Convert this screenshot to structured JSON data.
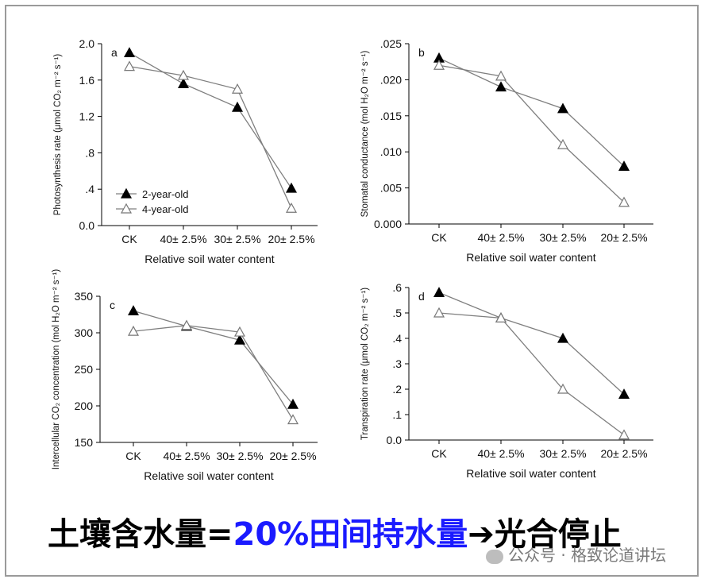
{
  "chart_data": [
    {
      "type": "line",
      "panel_label": "a",
      "categories": [
        "CK",
        "40± 2.5%",
        "30± 2.5%",
        "20± 2.5%"
      ],
      "xlabel": "Relative soil water content",
      "ylabel": "Photosynthesis rate (μmol CO₂ m⁻² s⁻¹)",
      "ylim": [
        0,
        2.0
      ],
      "yticks": [
        "0.0",
        ".4",
        ".8",
        "1.2",
        "1.6",
        "2.0"
      ],
      "legend": "top-left",
      "series": [
        {
          "name": "2-year-old",
          "marker": "filled-triangle",
          "values": [
            1.9,
            1.56,
            1.3,
            0.41
          ]
        },
        {
          "name": "4-year-old",
          "marker": "open-triangle",
          "values": [
            1.75,
            1.65,
            1.5,
            0.19
          ]
        }
      ]
    },
    {
      "type": "line",
      "panel_label": "b",
      "categories": [
        "CK",
        "40± 2.5%",
        "30± 2.5%",
        "20± 2.5%"
      ],
      "xlabel": "Relative soil water content",
      "ylabel": "Stomatal conductance (mol H₂O m⁻² s⁻¹)",
      "ylim": [
        0,
        0.025
      ],
      "yticks": [
        "0.000",
        ".005",
        ".010",
        ".015",
        ".020",
        ".025"
      ],
      "series": [
        {
          "name": "2-year-old",
          "marker": "filled-triangle",
          "values": [
            0.023,
            0.019,
            0.016,
            0.008
          ]
        },
        {
          "name": "4-year-old",
          "marker": "open-triangle",
          "values": [
            0.022,
            0.0205,
            0.011,
            0.003
          ]
        }
      ]
    },
    {
      "type": "line",
      "panel_label": "c",
      "categories": [
        "CK",
        "40± 2.5%",
        "30± 2.5%",
        "20± 2.5%"
      ],
      "xlabel": "Relative soil water content",
      "ylabel": "Intercellular CO₂ concentration (mol H₂O m⁻² s⁻¹)",
      "ylim": [
        150,
        350
      ],
      "yticks": [
        "150",
        "200",
        "250",
        "300",
        "350"
      ],
      "series": [
        {
          "name": "2-year-old",
          "marker": "filled-triangle",
          "values": [
            330,
            309,
            290,
            202
          ]
        },
        {
          "name": "4-year-old",
          "marker": "open-triangle",
          "values": [
            302,
            310,
            301,
            181
          ]
        }
      ]
    },
    {
      "type": "line",
      "panel_label": "d",
      "categories": [
        "CK",
        "40± 2.5%",
        "30± 2.5%",
        "20± 2.5%"
      ],
      "xlabel": "Relative soil water content",
      "ylabel": "Transpiration rate (μmol CO₂ m⁻² s⁻¹)",
      "ylim": [
        0,
        0.6
      ],
      "yticks": [
        "0.0",
        ".1",
        ".2",
        ".3",
        ".4",
        ".5",
        ".6"
      ],
      "series": [
        {
          "name": "2-year-old",
          "marker": "filled-triangle",
          "values": [
            0.58,
            0.48,
            0.4,
            0.18
          ]
        },
        {
          "name": "4-year-old",
          "marker": "open-triangle",
          "values": [
            0.5,
            0.48,
            0.2,
            0.02
          ]
        }
      ]
    }
  ],
  "caption": {
    "part1": "土壤含水量=",
    "part2": "20%田间持水量",
    "part3": "➔光合停止"
  },
  "watermark": "公众号 · 格致论道讲坛",
  "colors": {
    "caption_blue": "#1a1aff",
    "line": "#7f7f7f",
    "marker_fill": "#000000"
  }
}
